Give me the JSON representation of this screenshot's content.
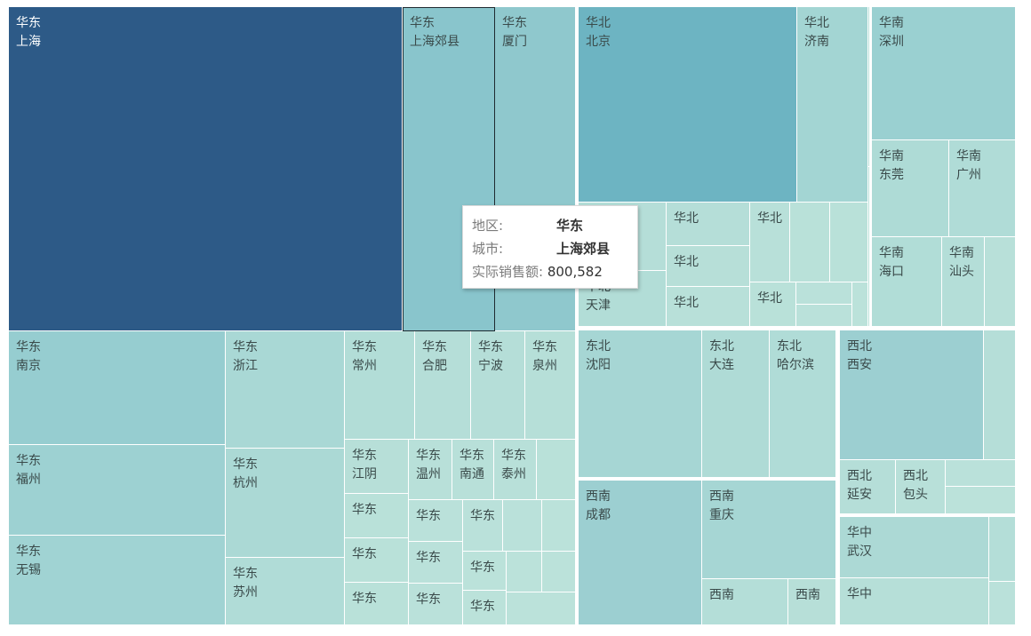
{
  "chart_data": {
    "type": "treemap",
    "groups": [
      {
        "name": "华东",
        "cells": [
          {
            "region": "华东",
            "city": "上海",
            "shade": "#2d5a87",
            "dark": true
          },
          {
            "region": "华东",
            "city": "上海郊县",
            "shade": "#89c5cc",
            "highlighted": true
          },
          {
            "region": "华东",
            "city": "厦门",
            "shade": "#8fc8cd"
          },
          {
            "region": "华东",
            "city": "南京",
            "shade": "#96cdd0"
          },
          {
            "region": "华东",
            "city": "福州",
            "shade": "#9dd1d2"
          },
          {
            "region": "华东",
            "city": "无锡",
            "shade": "#a0d3d3"
          },
          {
            "region": "华东",
            "city": "浙江",
            "shade": "#a9d8d5"
          },
          {
            "region": "华东",
            "city": "杭州",
            "shade": "#abd9d5"
          },
          {
            "region": "华东",
            "city": "苏州",
            "shade": "#b0dcd7"
          },
          {
            "region": "华东",
            "city": "常州",
            "shade": "#b2ddd7"
          },
          {
            "region": "华东",
            "city": "合肥",
            "shade": "#b5ded8"
          },
          {
            "region": "华东",
            "city": "宁波",
            "shade": "#b5ded8"
          },
          {
            "region": "华东",
            "city": "泉州",
            "shade": "#b6dfd8"
          },
          {
            "region": "华东",
            "city": "江阴",
            "shade": "#b7dfd8"
          },
          {
            "region": "华东",
            "city": "温州",
            "shade": "#b8e0d9"
          },
          {
            "region": "华东",
            "city": "南通",
            "shade": "#b8e0d9"
          },
          {
            "region": "华东",
            "city": "泰州",
            "shade": "#b8e0d9"
          },
          {
            "region": "华东",
            "city": "",
            "shade": "#b9e1d9"
          },
          {
            "region": "华东",
            "city": "",
            "shade": "#b9e1d9"
          },
          {
            "region": "华东",
            "city": "",
            "shade": "#b9e1d9"
          },
          {
            "region": "华东",
            "city": "",
            "shade": "#b9e1d9"
          },
          {
            "region": "华东",
            "city": "",
            "shade": "#bae1da"
          },
          {
            "region": "华东",
            "city": "",
            "shade": "#bae1da"
          },
          {
            "region": "华东",
            "city": "",
            "shade": "#bae1da"
          },
          {
            "region": "华东",
            "city": "",
            "shade": "#bae1da"
          },
          {
            "region": "华东",
            "city": "",
            "shade": "#bae1da"
          },
          {
            "region": "华东",
            "city": "",
            "shade": "#bbe2da"
          },
          {
            "region": "华东",
            "city": "",
            "shade": "#bbe2da"
          },
          {
            "region": "华东",
            "city": "",
            "shade": "#bbe2da"
          },
          {
            "region": "华东",
            "city": "",
            "shade": "#bbe2da"
          },
          {
            "region": "华东",
            "city": "",
            "shade": "#bbe2da"
          },
          {
            "region": "华东",
            "city": "",
            "shade": "#bbe2da"
          }
        ]
      },
      {
        "name": "华北",
        "cells": [
          {
            "region": "华北",
            "city": "北京",
            "shade": "#6db4c2"
          },
          {
            "region": "华北",
            "city": "济南",
            "shade": "#a3d5d3"
          },
          {
            "region": "华北",
            "city": "天津",
            "shade": "#b2ddd7"
          },
          {
            "region": "华北",
            "city": "",
            "shade": "#b5ded8"
          },
          {
            "region": "华北",
            "city": "",
            "shade": "#b5ded8"
          },
          {
            "region": "华北",
            "city": "",
            "shade": "#b7dfd8"
          },
          {
            "region": "华北",
            "city": "",
            "shade": "#b8e0d9"
          },
          {
            "region": "华北",
            "city": "",
            "shade": "#b8e0d9"
          },
          {
            "region": "华北",
            "city": "",
            "shade": "#b9e1d9"
          },
          {
            "region": "华北",
            "city": "",
            "shade": "#b9e1d9"
          },
          {
            "region": "华北",
            "city": "",
            "shade": "#b9e1d9"
          },
          {
            "region": "华北",
            "city": "",
            "shade": "#bae1da"
          },
          {
            "region": "华北",
            "city": "",
            "shade": "#bae1da"
          },
          {
            "region": "华北",
            "city": "",
            "shade": "#bbe2da"
          },
          {
            "region": "华北",
            "city": "",
            "shade": "#bbe2da"
          },
          {
            "region": "华北",
            "city": "",
            "shade": "#bbe2da"
          }
        ]
      },
      {
        "name": "华南",
        "cells": [
          {
            "region": "华南",
            "city": "深圳",
            "shade": "#9ad0d1"
          },
          {
            "region": "华南",
            "city": "东莞",
            "shade": "#aedbd6"
          },
          {
            "region": "华南",
            "city": "广州",
            "shade": "#b0dcd7"
          },
          {
            "region": "华南",
            "city": "海口",
            "shade": "#b1ddd7"
          },
          {
            "region": "华南",
            "city": "汕头",
            "shade": "#b4ded8"
          },
          {
            "region": "华南",
            "city": "",
            "shade": "#b8e0d9"
          }
        ]
      },
      {
        "name": "东北",
        "cells": [
          {
            "region": "东北",
            "city": "沈阳",
            "shade": "#a6d6d4"
          },
          {
            "region": "东北",
            "city": "大连",
            "shade": "#afdbd6"
          },
          {
            "region": "东北",
            "city": "哈尔滨",
            "shade": "#b0dcd7"
          }
        ]
      },
      {
        "name": "西北",
        "cells": [
          {
            "region": "西北",
            "city": "西安",
            "shade": "#9ccfd1"
          },
          {
            "region": "西北",
            "city": "",
            "shade": "#b5ded8"
          },
          {
            "region": "西北",
            "city": "延安",
            "shade": "#b5ded8"
          },
          {
            "region": "西北",
            "city": "包头",
            "shade": "#b8e0d9"
          },
          {
            "region": "西北",
            "city": "",
            "shade": "#bae1da"
          },
          {
            "region": "西北",
            "city": "",
            "shade": "#bbe2da"
          }
        ]
      },
      {
        "name": "西南",
        "cells": [
          {
            "region": "西南",
            "city": "成都",
            "shade": "#9ccfd1"
          },
          {
            "region": "西南",
            "city": "重庆",
            "shade": "#a6d6d4"
          },
          {
            "region": "西南",
            "city": "",
            "shade": "#b4ded8"
          },
          {
            "region": "西南",
            "city": "",
            "shade": "#b7dfd8"
          }
        ]
      },
      {
        "name": "华中",
        "cells": [
          {
            "region": "华中",
            "city": "武汉",
            "shade": "#acd9d5"
          },
          {
            "region": "华中",
            "city": "",
            "shade": "#b4ded8"
          },
          {
            "region": "华中",
            "city": "",
            "shade": "#b6dfd8"
          },
          {
            "region": "华中",
            "city": "",
            "shade": "#bae1da"
          }
        ]
      }
    ]
  },
  "tooltip": {
    "region_key": "地区:",
    "region_value": "华东",
    "city_key": "城市:",
    "city_value": "上海郊县",
    "sales_key": "实际销售额:",
    "sales_value": "800,582"
  }
}
